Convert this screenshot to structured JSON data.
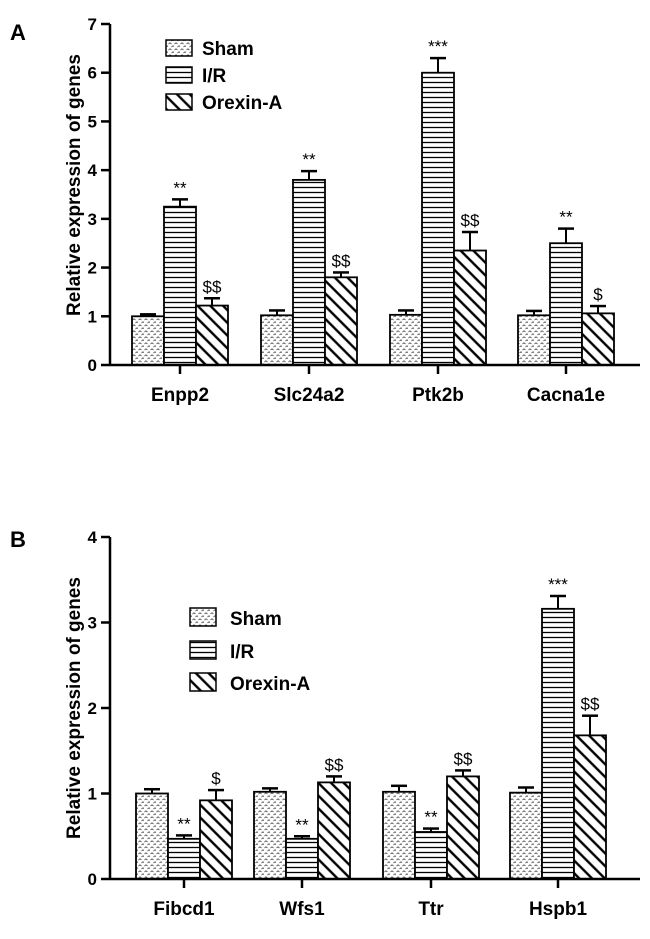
{
  "colors": {
    "ink": "#000000",
    "bar_fill": "#ffffff"
  },
  "legend_series": [
    "Sham",
    "I/R",
    "Orexin-A"
  ],
  "chart_data": [
    {
      "type": "bar",
      "panel": "A",
      "title": "",
      "xlabel": "",
      "ylabel": "Relative expression of genes",
      "ylim": [
        0,
        7
      ],
      "yticks": [
        0,
        1,
        2,
        3,
        4,
        5,
        6,
        7
      ],
      "legend_position": "top-left",
      "categories": [
        "Enpp2",
        "Slc24a2",
        "Ptk2b",
        "Cacna1e"
      ],
      "series": [
        {
          "name": "Sham",
          "pattern": "dots",
          "values": [
            1.0,
            1.02,
            1.03,
            1.02
          ],
          "errors": [
            0.04,
            0.1,
            0.09,
            0.09
          ],
          "labels": [
            "",
            "",
            "",
            ""
          ]
        },
        {
          "name": "I/R",
          "pattern": "hlines",
          "values": [
            3.25,
            3.8,
            6.0,
            2.5
          ],
          "errors": [
            0.15,
            0.18,
            0.3,
            0.3
          ],
          "labels": [
            "**",
            "**",
            "***",
            "**"
          ]
        },
        {
          "name": "Orexin-A",
          "pattern": "diag",
          "values": [
            1.22,
            1.8,
            2.35,
            1.06
          ],
          "errors": [
            0.15,
            0.1,
            0.38,
            0.15
          ],
          "labels": [
            "$$",
            "$$",
            "$$",
            "$"
          ]
        }
      ]
    },
    {
      "type": "bar",
      "panel": "B",
      "title": "",
      "xlabel": "",
      "ylabel": "Relative expression of genes",
      "ylim": [
        0,
        4
      ],
      "yticks": [
        0,
        1,
        2,
        3,
        4
      ],
      "legend_position": "middle-left",
      "categories": [
        "Fibcd1",
        "Wfs1",
        "Ttr",
        "Hspb1"
      ],
      "series": [
        {
          "name": "Sham",
          "pattern": "dots",
          "values": [
            1.0,
            1.02,
            1.02,
            1.01
          ],
          "errors": [
            0.05,
            0.04,
            0.07,
            0.06
          ],
          "labels": [
            "",
            "",
            "",
            ""
          ]
        },
        {
          "name": "I/R",
          "pattern": "hlines",
          "values": [
            0.47,
            0.47,
            0.55,
            3.16
          ],
          "errors": [
            0.04,
            0.03,
            0.04,
            0.15
          ],
          "labels": [
            "**",
            "**",
            "**",
            "***"
          ]
        },
        {
          "name": "Orexin-A",
          "pattern": "diag",
          "values": [
            0.92,
            1.13,
            1.2,
            1.68
          ],
          "errors": [
            0.12,
            0.07,
            0.07,
            0.23
          ],
          "labels": [
            "$",
            "$$",
            "$$",
            "$$"
          ]
        }
      ]
    }
  ]
}
